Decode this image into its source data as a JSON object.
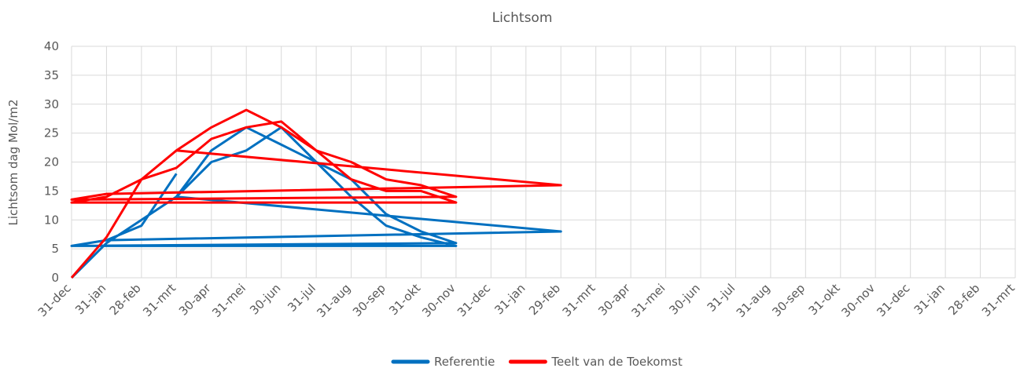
{
  "chart_data": {
    "type": "line",
    "title": "Lichtsom",
    "xlabel": "",
    "ylabel": "Lichtsom dag Mol/m2",
    "ylim": [
      0,
      40
    ],
    "yticks": [
      "0",
      "5",
      "10",
      "15",
      "20",
      "25",
      "30",
      "35",
      "40"
    ],
    "x_tick_labels": [
      "31-dec",
      "31-jan",
      "28-feb",
      "31-mrt",
      "30-apr",
      "31-mei",
      "30-jun",
      "31-jul",
      "31-aug",
      "30-sep",
      "31-okt",
      "30-nov",
      "31-dec",
      "31-jan",
      "29-feb",
      "31-mrt",
      "30-apr",
      "31-mei",
      "30-jun",
      "31-jul",
      "31-aug",
      "30-sep",
      "31-okt",
      "30-nov",
      "31-dec",
      "31-jan",
      "28-feb",
      "31-mrt"
    ],
    "grid": true,
    "legend_position": "bottom",
    "series": [
      {
        "name": "Referentie",
        "color": "#0070c0",
        "x": [
          "31-dec",
          "31-jan",
          "28-feb",
          "31-mrt",
          "30-apr",
          "31-mei",
          "30-jun",
          "31-jul",
          "31-aug",
          "30-sep",
          "31-okt",
          "30-nov",
          "31-dec",
          "31-jan",
          "29-feb",
          "31-mrt",
          "30-apr",
          "31-mei",
          "30-jun",
          "31-jul",
          "31-aug",
          "30-sep",
          "31-okt",
          "30-nov",
          "31-dec",
          "31-jan",
          "28-feb",
          "31-mrt"
        ],
        "values": [
          0,
          6,
          10,
          14,
          20,
          22,
          26,
          20,
          17,
          11,
          8,
          6,
          5.5,
          6.5,
          8,
          14,
          22,
          26,
          23,
          20,
          14,
          9,
          7,
          5.5,
          5.5,
          6.5,
          9,
          18
        ]
      },
      {
        "name": "Teelt van de Toekomst",
        "color": "#ff0000",
        "x": [
          "31-dec",
          "31-jan",
          "28-feb",
          "31-mrt",
          "30-apr",
          "31-mei",
          "30-jun",
          "31-jul",
          "31-aug",
          "30-sep",
          "31-okt",
          "30-nov",
          "31-dec",
          "31-jan",
          "29-feb",
          "31-mrt",
          "30-apr",
          "31-mei",
          "30-jun",
          "31-jul",
          "31-aug",
          "30-sep",
          "31-okt",
          "30-nov",
          "31-dec",
          "31-jan",
          "28-feb",
          "31-mrt"
        ],
        "values": [
          0,
          7,
          17,
          19,
          24,
          26,
          27,
          22,
          20,
          17,
          16,
          14,
          13.5,
          14.5,
          16,
          22,
          26,
          29,
          26,
          22,
          17,
          15,
          15,
          13,
          13,
          14,
          17,
          22
        ]
      }
    ]
  }
}
